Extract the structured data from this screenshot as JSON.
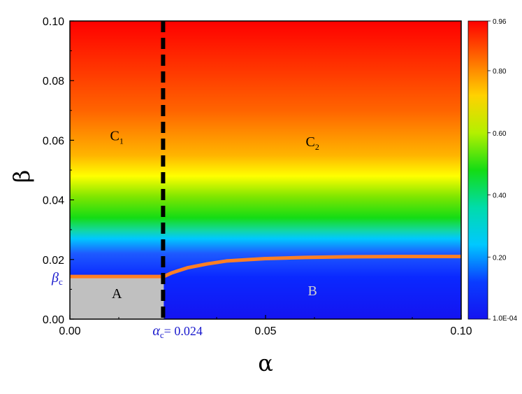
{
  "chart_data": {
    "type": "heatmap",
    "xlabel": "α",
    "ylabel": "β",
    "xlim": [
      0,
      0.1
    ],
    "ylim": [
      0,
      0.1
    ],
    "x_ticks": [
      "0.00",
      "0.05",
      "0.10"
    ],
    "x_tick_values": [
      0,
      0.05,
      0.1
    ],
    "y_ticks": [
      "0.00",
      "0.02",
      "0.04",
      "0.06",
      "0.08",
      "0.10"
    ],
    "y_tick_values": [
      0,
      0.02,
      0.04,
      0.06,
      0.08,
      0.1
    ],
    "colorbar": {
      "min": 0.0001,
      "max": 0.96,
      "ticks": [
        "0.96",
        "0.80",
        "0.60",
        "0.40",
        "0.20",
        "1.0E-04"
      ],
      "tick_values": [
        0.96,
        0.8,
        0.6,
        0.4,
        0.2,
        0.0001
      ],
      "colors": [
        "#ff0000",
        "#ff6a00",
        "#ffd200",
        "#b4f000",
        "#14dc14",
        "#00dcaa",
        "#00c8ff",
        "#0a3cff",
        "#1414f0"
      ]
    },
    "regions": [
      {
        "label": "A",
        "sub": "",
        "x": 0.012,
        "y": 0.007,
        "color": "#000000"
      },
      {
        "label": "B",
        "sub": "",
        "x": 0.062,
        "y": 0.008,
        "color": "#d0d0d0"
      },
      {
        "label": "C",
        "sub": "1",
        "x": 0.012,
        "y": 0.06,
        "color": "#000000"
      },
      {
        "label": "C",
        "sub": "2",
        "x": 0.062,
        "y": 0.058,
        "color": "#000000"
      }
    ],
    "critical_alpha": {
      "symbol": "α",
      "sub": "c",
      "value_label": "= 0.024",
      "value": 0.024
    },
    "critical_beta": {
      "symbol": "β",
      "sub": "c",
      "value": 0.0143
    },
    "boundary_line": {
      "color": "#ff7f24",
      "points": [
        [
          0,
          0.0143
        ],
        [
          0.024,
          0.0143
        ],
        [
          0.026,
          0.0155
        ],
        [
          0.03,
          0.0172
        ],
        [
          0.035,
          0.0185
        ],
        [
          0.04,
          0.0195
        ],
        [
          0.05,
          0.0203
        ],
        [
          0.06,
          0.0207
        ],
        [
          0.07,
          0.0209
        ],
        [
          0.085,
          0.021
        ],
        [
          0.1,
          0.021
        ]
      ]
    },
    "critical_region_color": "#c0c0c0",
    "color_bands": [
      {
        "beta": 0.0,
        "color": "#1414f0"
      },
      {
        "beta": 0.014,
        "color": "#0a28ff"
      },
      {
        "beta": 0.022,
        "color": "#1e5aff"
      },
      {
        "beta": 0.027,
        "color": "#00c8ff"
      },
      {
        "beta": 0.03,
        "color": "#14d89a"
      },
      {
        "beta": 0.034,
        "color": "#14dc14"
      },
      {
        "beta": 0.041,
        "color": "#7ee600"
      },
      {
        "beta": 0.048,
        "color": "#ffff00"
      },
      {
        "beta": 0.055,
        "color": "#ffb400"
      },
      {
        "beta": 0.07,
        "color": "#ff6400"
      },
      {
        "beta": 0.1,
        "color": "#ff0000"
      }
    ]
  }
}
